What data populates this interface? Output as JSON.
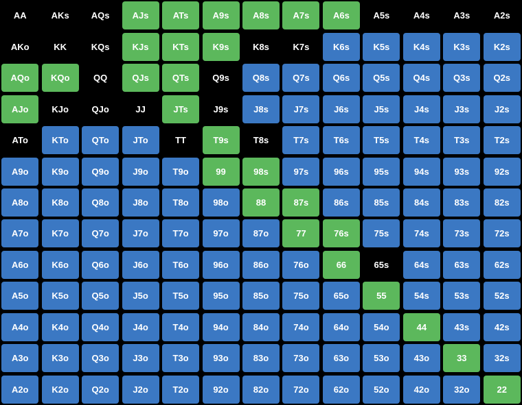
{
  "grid": {
    "rows": [
      [
        {
          "label": "AA",
          "color": "#000000"
        },
        {
          "label": "AKs",
          "color": "#000000"
        },
        {
          "label": "AQs",
          "color": "#000000"
        },
        {
          "label": "AJs",
          "color": "#5cb85c"
        },
        {
          "label": "ATs",
          "color": "#5cb85c"
        },
        {
          "label": "A9s",
          "color": "#5cb85c"
        },
        {
          "label": "A8s",
          "color": "#5cb85c"
        },
        {
          "label": "A7s",
          "color": "#5cb85c"
        },
        {
          "label": "A6s",
          "color": "#5cb85c"
        },
        {
          "label": "A5s",
          "color": "#000000"
        },
        {
          "label": "A4s",
          "color": "#000000"
        },
        {
          "label": "A3s",
          "color": "#000000"
        },
        {
          "label": "A2s",
          "color": "#000000"
        }
      ],
      [
        {
          "label": "AKo",
          "color": "#000000"
        },
        {
          "label": "KK",
          "color": "#000000"
        },
        {
          "label": "KQs",
          "color": "#000000"
        },
        {
          "label": "KJs",
          "color": "#5cb85c"
        },
        {
          "label": "KTs",
          "color": "#5cb85c"
        },
        {
          "label": "K9s",
          "color": "#5cb85c"
        },
        {
          "label": "K8s",
          "color": "#000000"
        },
        {
          "label": "K7s",
          "color": "#000000"
        },
        {
          "label": "K6s",
          "color": "#3b78c3"
        },
        {
          "label": "K5s",
          "color": "#3b78c3"
        },
        {
          "label": "K4s",
          "color": "#3b78c3"
        },
        {
          "label": "K3s",
          "color": "#3b78c3"
        },
        {
          "label": "K2s",
          "color": "#3b78c3"
        }
      ],
      [
        {
          "label": "AQo",
          "color": "#5cb85c"
        },
        {
          "label": "KQo",
          "color": "#5cb85c"
        },
        {
          "label": "QQ",
          "color": "#000000"
        },
        {
          "label": "QJs",
          "color": "#5cb85c"
        },
        {
          "label": "QTs",
          "color": "#5cb85c"
        },
        {
          "label": "Q9s",
          "color": "#000000"
        },
        {
          "label": "Q8s",
          "color": "#3b78c3"
        },
        {
          "label": "Q7s",
          "color": "#3b78c3"
        },
        {
          "label": "Q6s",
          "color": "#3b78c3"
        },
        {
          "label": "Q5s",
          "color": "#3b78c3"
        },
        {
          "label": "Q4s",
          "color": "#3b78c3"
        },
        {
          "label": "Q3s",
          "color": "#3b78c3"
        },
        {
          "label": "Q2s",
          "color": "#3b78c3"
        }
      ],
      [
        {
          "label": "AJo",
          "color": "#5cb85c"
        },
        {
          "label": "KJo",
          "color": "#000000"
        },
        {
          "label": "QJo",
          "color": "#000000"
        },
        {
          "label": "JJ",
          "color": "#000000"
        },
        {
          "label": "JTs",
          "color": "#5cb85c"
        },
        {
          "label": "J9s",
          "color": "#000000"
        },
        {
          "label": "J8s",
          "color": "#3b78c3"
        },
        {
          "label": "J7s",
          "color": "#3b78c3"
        },
        {
          "label": "J6s",
          "color": "#3b78c3"
        },
        {
          "label": "J5s",
          "color": "#3b78c3"
        },
        {
          "label": "J4s",
          "color": "#3b78c3"
        },
        {
          "label": "J3s",
          "color": "#3b78c3"
        },
        {
          "label": "J2s",
          "color": "#3b78c3"
        }
      ],
      [
        {
          "label": "ATo",
          "color": "#000000"
        },
        {
          "label": "KTo",
          "color": "#3b78c3"
        },
        {
          "label": "QTo",
          "color": "#3b78c3"
        },
        {
          "label": "JTo",
          "color": "#3b78c3"
        },
        {
          "label": "TT",
          "color": "#000000"
        },
        {
          "label": "T9s",
          "color": "#5cb85c"
        },
        {
          "label": "T8s",
          "color": "#000000"
        },
        {
          "label": "T7s",
          "color": "#3b78c3"
        },
        {
          "label": "T6s",
          "color": "#3b78c3"
        },
        {
          "label": "T5s",
          "color": "#3b78c3"
        },
        {
          "label": "T4s",
          "color": "#3b78c3"
        },
        {
          "label": "T3s",
          "color": "#3b78c3"
        },
        {
          "label": "T2s",
          "color": "#3b78c3"
        }
      ],
      [
        {
          "label": "A9o",
          "color": "#3b78c3"
        },
        {
          "label": "K9o",
          "color": "#3b78c3"
        },
        {
          "label": "Q9o",
          "color": "#3b78c3"
        },
        {
          "label": "J9o",
          "color": "#3b78c3"
        },
        {
          "label": "T9o",
          "color": "#3b78c3"
        },
        {
          "label": "99",
          "color": "#5cb85c"
        },
        {
          "label": "98s",
          "color": "#5cb85c"
        },
        {
          "label": "97s",
          "color": "#3b78c3"
        },
        {
          "label": "96s",
          "color": "#3b78c3"
        },
        {
          "label": "95s",
          "color": "#3b78c3"
        },
        {
          "label": "94s",
          "color": "#3b78c3"
        },
        {
          "label": "93s",
          "color": "#3b78c3"
        },
        {
          "label": "92s",
          "color": "#3b78c3"
        }
      ],
      [
        {
          "label": "A8o",
          "color": "#3b78c3"
        },
        {
          "label": "K8o",
          "color": "#3b78c3"
        },
        {
          "label": "Q8o",
          "color": "#3b78c3"
        },
        {
          "label": "J8o",
          "color": "#3b78c3"
        },
        {
          "label": "T8o",
          "color": "#3b78c3"
        },
        {
          "label": "98o",
          "color": "#3b78c3"
        },
        {
          "label": "88",
          "color": "#5cb85c"
        },
        {
          "label": "87s",
          "color": "#5cb85c"
        },
        {
          "label": "86s",
          "color": "#3b78c3"
        },
        {
          "label": "85s",
          "color": "#3b78c3"
        },
        {
          "label": "84s",
          "color": "#3b78c3"
        },
        {
          "label": "83s",
          "color": "#3b78c3"
        },
        {
          "label": "82s",
          "color": "#3b78c3"
        }
      ],
      [
        {
          "label": "A7o",
          "color": "#3b78c3"
        },
        {
          "label": "K7o",
          "color": "#3b78c3"
        },
        {
          "label": "Q7o",
          "color": "#3b78c3"
        },
        {
          "label": "J7o",
          "color": "#3b78c3"
        },
        {
          "label": "T7o",
          "color": "#3b78c3"
        },
        {
          "label": "97o",
          "color": "#3b78c3"
        },
        {
          "label": "87o",
          "color": "#3b78c3"
        },
        {
          "label": "77",
          "color": "#5cb85c"
        },
        {
          "label": "76s",
          "color": "#5cb85c"
        },
        {
          "label": "75s",
          "color": "#3b78c3"
        },
        {
          "label": "74s",
          "color": "#3b78c3"
        },
        {
          "label": "73s",
          "color": "#3b78c3"
        },
        {
          "label": "72s",
          "color": "#3b78c3"
        }
      ],
      [
        {
          "label": "A6o",
          "color": "#3b78c3"
        },
        {
          "label": "K6o",
          "color": "#3b78c3"
        },
        {
          "label": "Q6o",
          "color": "#3b78c3"
        },
        {
          "label": "J6o",
          "color": "#3b78c3"
        },
        {
          "label": "T6o",
          "color": "#3b78c3"
        },
        {
          "label": "96o",
          "color": "#3b78c3"
        },
        {
          "label": "86o",
          "color": "#3b78c3"
        },
        {
          "label": "76o",
          "color": "#3b78c3"
        },
        {
          "label": "66",
          "color": "#5cb85c"
        },
        {
          "label": "65s",
          "color": "#000000"
        },
        {
          "label": "64s",
          "color": "#3b78c3"
        },
        {
          "label": "63s",
          "color": "#3b78c3"
        },
        {
          "label": "62s",
          "color": "#3b78c3"
        }
      ],
      [
        {
          "label": "A5o",
          "color": "#3b78c3"
        },
        {
          "label": "K5o",
          "color": "#3b78c3"
        },
        {
          "label": "Q5o",
          "color": "#3b78c3"
        },
        {
          "label": "J5o",
          "color": "#3b78c3"
        },
        {
          "label": "T5o",
          "color": "#3b78c3"
        },
        {
          "label": "95o",
          "color": "#3b78c3"
        },
        {
          "label": "85o",
          "color": "#3b78c3"
        },
        {
          "label": "75o",
          "color": "#3b78c3"
        },
        {
          "label": "65o",
          "color": "#3b78c3"
        },
        {
          "label": "55",
          "color": "#5cb85c"
        },
        {
          "label": "54s",
          "color": "#3b78c3"
        },
        {
          "label": "53s",
          "color": "#3b78c3"
        },
        {
          "label": "52s",
          "color": "#3b78c3"
        }
      ],
      [
        {
          "label": "A4o",
          "color": "#3b78c3"
        },
        {
          "label": "K4o",
          "color": "#3b78c3"
        },
        {
          "label": "Q4o",
          "color": "#3b78c3"
        },
        {
          "label": "J4o",
          "color": "#3b78c3"
        },
        {
          "label": "T4o",
          "color": "#3b78c3"
        },
        {
          "label": "94o",
          "color": "#3b78c3"
        },
        {
          "label": "84o",
          "color": "#3b78c3"
        },
        {
          "label": "74o",
          "color": "#3b78c3"
        },
        {
          "label": "64o",
          "color": "#3b78c3"
        },
        {
          "label": "54o",
          "color": "#3b78c3"
        },
        {
          "label": "44",
          "color": "#5cb85c"
        },
        {
          "label": "43s",
          "color": "#3b78c3"
        },
        {
          "label": "42s",
          "color": "#3b78c3"
        }
      ],
      [
        {
          "label": "A3o",
          "color": "#3b78c3"
        },
        {
          "label": "K3o",
          "color": "#3b78c3"
        },
        {
          "label": "Q3o",
          "color": "#3b78c3"
        },
        {
          "label": "J3o",
          "color": "#3b78c3"
        },
        {
          "label": "T3o",
          "color": "#3b78c3"
        },
        {
          "label": "93o",
          "color": "#3b78c3"
        },
        {
          "label": "83o",
          "color": "#3b78c3"
        },
        {
          "label": "73o",
          "color": "#3b78c3"
        },
        {
          "label": "63o",
          "color": "#3b78c3"
        },
        {
          "label": "53o",
          "color": "#3b78c3"
        },
        {
          "label": "43o",
          "color": "#3b78c3"
        },
        {
          "label": "33",
          "color": "#5cb85c"
        },
        {
          "label": "32s",
          "color": "#3b78c3"
        }
      ],
      [
        {
          "label": "A2o",
          "color": "#3b78c3"
        },
        {
          "label": "K2o",
          "color": "#3b78c3"
        },
        {
          "label": "Q2o",
          "color": "#3b78c3"
        },
        {
          "label": "J2o",
          "color": "#3b78c3"
        },
        {
          "label": "T2o",
          "color": "#3b78c3"
        },
        {
          "label": "92o",
          "color": "#3b78c3"
        },
        {
          "label": "82o",
          "color": "#3b78c3"
        },
        {
          "label": "72o",
          "color": "#3b78c3"
        },
        {
          "label": "62o",
          "color": "#3b78c3"
        },
        {
          "label": "52o",
          "color": "#3b78c3"
        },
        {
          "label": "42o",
          "color": "#3b78c3"
        },
        {
          "label": "32o",
          "color": "#3b78c3"
        },
        {
          "label": "22",
          "color": "#5cb85c"
        }
      ]
    ]
  }
}
